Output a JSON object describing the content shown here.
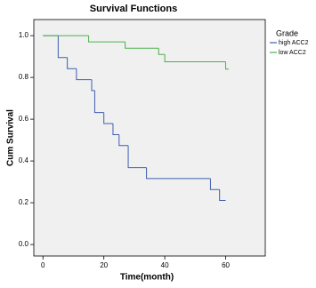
{
  "chart_data": {
    "type": "line",
    "step": true,
    "title": "Survival Functions",
    "x_label": "Time(month)",
    "y_label": "Cum Survival",
    "legend_title": "Grade",
    "series": [
      {
        "name": "high ACC2",
        "color": "#3c5fb0",
        "x": [
          0,
          5,
          8,
          11,
          16,
          17,
          20,
          23,
          25,
          28,
          34,
          55,
          58,
          60
        ],
        "values": [
          1,
          0.895,
          0.842,
          0.789,
          0.737,
          0.632,
          0.579,
          0.526,
          0.474,
          0.368,
          0.316,
          0.263,
          0.211,
          0.211
        ]
      },
      {
        "name": "low ACC2",
        "color": "#4caf4c",
        "x": [
          0,
          15,
          27,
          38,
          40,
          60,
          61
        ],
        "values": [
          1,
          0.97,
          0.94,
          0.91,
          0.875,
          0.84,
          0.84
        ]
      }
    ],
    "xlim": [
      -3,
      73
    ],
    "ylim": [
      -0.055,
      1.077
    ],
    "xticks": [
      0,
      20,
      40,
      60
    ],
    "yticks": [
      {
        "value": 0,
        "label": "0.0"
      },
      0.2,
      0.4,
      0.6,
      0.8,
      {
        "value": 1,
        "label": "1.0"
      }
    ]
  }
}
